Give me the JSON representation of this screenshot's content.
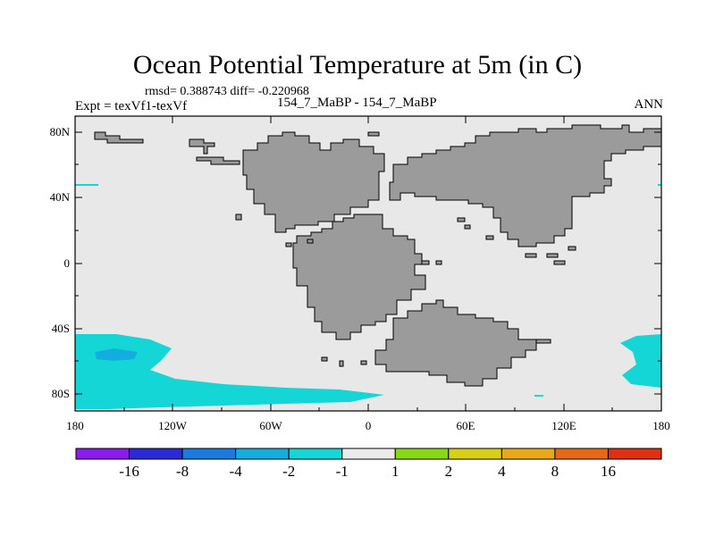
{
  "title": "Ocean Potential Temperature at 5m (in C)",
  "stats_line": "rmsd= 0.388743  diff= -0.220968",
  "left_label": "Expt = texVf1-texVf",
  "center_label": "154_7_MaBP - 154_7_MaBP",
  "right_label": "ANN",
  "lat_labels": [
    "80N",
    "40N",
    "0",
    "40S",
    "80S"
  ],
  "lon_labels": [
    "180",
    "120W",
    "60W",
    "0",
    "60E",
    "120E",
    "180"
  ],
  "colorbar": {
    "colors": [
      "#8a1cee",
      "#2a2ad8",
      "#1a7ae0",
      "#12aee0",
      "#14d6d6",
      "#ebebeb",
      "#88d814",
      "#d8d014",
      "#e8a818",
      "#e66814",
      "#e03010"
    ],
    "labels": [
      "-16",
      "-8",
      "-4",
      "-2",
      "-1",
      "1",
      "2",
      "4",
      "8",
      "16"
    ]
  },
  "colors": {
    "ocean": "#e8e8e8",
    "land": "#9b9b9b",
    "anomaly_light": "#14d6d6",
    "anomaly_mid": "#12aee0"
  }
}
